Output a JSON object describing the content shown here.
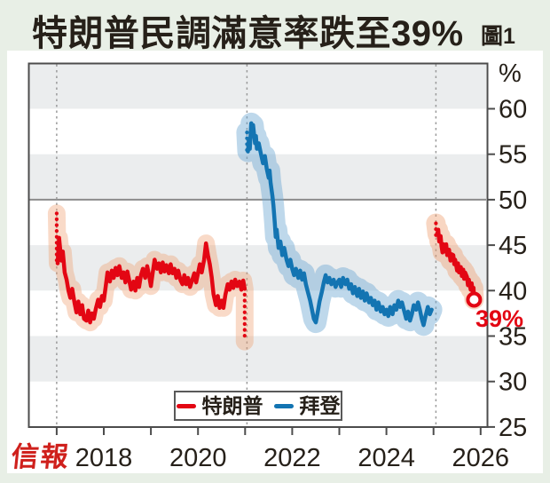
{
  "header": {
    "title": "特朗普民調滿意率跌至39%",
    "figure_label": "圖1"
  },
  "footer": {
    "logo": "信報"
  },
  "annotation": {
    "end_label": "39%"
  },
  "legend": {
    "items": [
      {
        "label": "特朗普",
        "color": "#e30613"
      },
      {
        "label": "拜登",
        "color": "#1374b2"
      }
    ]
  },
  "chart_data": {
    "type": "line",
    "title": "特朗普民調滿意率跌至39%",
    "unit_label": "%",
    "xlabel": "",
    "ylabel": "%",
    "ylim": [
      25,
      65
    ],
    "xlim": [
      2016.75,
      2026.15
    ],
    "y_ticks": [
      60,
      55,
      50,
      45,
      40,
      35,
      30,
      25
    ],
    "x_major_ticks": [
      2018,
      2020,
      2022,
      2024,
      2026
    ],
    "x_all_ticks": [
      2017,
      2018,
      2019,
      2020,
      2021,
      2022,
      2023,
      2024,
      2025,
      2026
    ],
    "gray_bands": [
      [
        60,
        65
      ],
      [
        50,
        55
      ],
      [
        40,
        45
      ],
      [
        30,
        35
      ]
    ],
    "reference_line": 50,
    "term_start_lines": [
      2017.0,
      2021.04,
      2025.05
    ],
    "grid": "banded",
    "legend_position": "bottom-center",
    "colors": {
      "band_gray": "#ebedee",
      "ref_line": "#8c8c8c",
      "axis": "#4c4c4c",
      "text": "#262019",
      "term_line": "#9a9a9a",
      "page_bg": "#e8efe6"
    },
    "series": [
      {
        "id": "trump-term1",
        "name": "特朗普",
        "color": "#e30613",
        "band_color": "#ef9e6e",
        "band_opacity": 0.38,
        "band_width": 20,
        "dotted_start": {
          "x": 2017.0,
          "from": 48.5,
          "to": 43.0
        },
        "dotted_end": {
          "x": 2020.99,
          "from": 40.2,
          "to": 34.4
        },
        "points": [
          [
            2017.02,
            43.0
          ],
          [
            2017.05,
            45.8
          ],
          [
            2017.07,
            44.8
          ],
          [
            2017.1,
            43.3
          ],
          [
            2017.13,
            44.3
          ],
          [
            2017.17,
            42.0
          ],
          [
            2017.21,
            41.2
          ],
          [
            2017.25,
            40.0
          ],
          [
            2017.29,
            39.2
          ],
          [
            2017.33,
            40.2
          ],
          [
            2017.38,
            38.6
          ],
          [
            2017.42,
            37.6
          ],
          [
            2017.46,
            38.8
          ],
          [
            2017.5,
            37.4
          ],
          [
            2017.54,
            38.4
          ],
          [
            2017.58,
            36.9
          ],
          [
            2017.63,
            36.7
          ],
          [
            2017.67,
            37.8
          ],
          [
            2017.71,
            36.5
          ],
          [
            2017.75,
            37.5
          ],
          [
            2017.79,
            36.9
          ],
          [
            2017.83,
            38.0
          ],
          [
            2017.88,
            39.0
          ],
          [
            2017.92,
            38.2
          ],
          [
            2017.96,
            39.4
          ],
          [
            2018.0,
            38.9
          ],
          [
            2018.04,
            40.4
          ],
          [
            2018.08,
            42.0
          ],
          [
            2018.13,
            41.0
          ],
          [
            2018.17,
            42.2
          ],
          [
            2018.21,
            41.4
          ],
          [
            2018.25,
            42.5
          ],
          [
            2018.29,
            41.7
          ],
          [
            2018.33,
            42.7
          ],
          [
            2018.38,
            41.4
          ],
          [
            2018.42,
            42.0
          ],
          [
            2018.46,
            40.9
          ],
          [
            2018.5,
            42.1
          ],
          [
            2018.54,
            41.1
          ],
          [
            2018.58,
            40.1
          ],
          [
            2018.63,
            41.0
          ],
          [
            2018.67,
            40.0
          ],
          [
            2018.71,
            41.4
          ],
          [
            2018.75,
            40.4
          ],
          [
            2018.79,
            41.7
          ],
          [
            2018.83,
            42.4
          ],
          [
            2018.88,
            41.4
          ],
          [
            2018.92,
            42.7
          ],
          [
            2018.96,
            41.7
          ],
          [
            2019.0,
            40.5
          ],
          [
            2019.04,
            42.0
          ],
          [
            2019.08,
            43.4
          ],
          [
            2019.13,
            42.4
          ],
          [
            2019.17,
            43.0
          ],
          [
            2019.21,
            42.0
          ],
          [
            2019.25,
            43.1
          ],
          [
            2019.29,
            42.1
          ],
          [
            2019.33,
            42.8
          ],
          [
            2019.38,
            41.9
          ],
          [
            2019.42,
            42.9
          ],
          [
            2019.46,
            41.9
          ],
          [
            2019.5,
            42.4
          ],
          [
            2019.54,
            41.4
          ],
          [
            2019.58,
            42.2
          ],
          [
            2019.63,
            41.1
          ],
          [
            2019.67,
            40.7
          ],
          [
            2019.71,
            41.7
          ],
          [
            2019.75,
            40.7
          ],
          [
            2019.79,
            41.4
          ],
          [
            2019.83,
            40.4
          ],
          [
            2019.88,
            41.2
          ],
          [
            2019.92,
            41.9
          ],
          [
            2019.96,
            40.9
          ],
          [
            2020.0,
            41.9
          ],
          [
            2020.04,
            42.9
          ],
          [
            2020.08,
            42.0
          ],
          [
            2020.13,
            43.4
          ],
          [
            2020.17,
            45.2
          ],
          [
            2020.21,
            43.9
          ],
          [
            2020.25,
            42.9
          ],
          [
            2020.29,
            41.5
          ],
          [
            2020.33,
            39.6
          ],
          [
            2020.38,
            38.4
          ],
          [
            2020.42,
            39.4
          ],
          [
            2020.46,
            38.1
          ],
          [
            2020.5,
            38.9
          ],
          [
            2020.54,
            38.1
          ],
          [
            2020.58,
            39.5
          ],
          [
            2020.63,
            40.7
          ],
          [
            2020.67,
            40.1
          ],
          [
            2020.71,
            41.0
          ],
          [
            2020.75,
            40.3
          ],
          [
            2020.79,
            41.2
          ],
          [
            2020.83,
            40.5
          ],
          [
            2020.88,
            41.0
          ],
          [
            2020.92,
            40.1
          ],
          [
            2020.96,
            41.1
          ],
          [
            2020.99,
            40.2
          ]
        ]
      },
      {
        "id": "biden-term",
        "name": "拜登",
        "color": "#1374b2",
        "band_color": "#6ea9d2",
        "band_opacity": 0.45,
        "band_width": 24,
        "dotted_start": {
          "x": 2021.04,
          "from": 57.4,
          "to": 55.0
        },
        "points": [
          [
            2021.06,
            55.3
          ],
          [
            2021.08,
            56.5
          ],
          [
            2021.1,
            55.6
          ],
          [
            2021.13,
            58.4
          ],
          [
            2021.15,
            57.4
          ],
          [
            2021.17,
            58.2
          ],
          [
            2021.21,
            56.2
          ],
          [
            2021.23,
            57.0
          ],
          [
            2021.25,
            55.6
          ],
          [
            2021.29,
            56.2
          ],
          [
            2021.33,
            55.2
          ],
          [
            2021.38,
            54.0
          ],
          [
            2021.42,
            54.8
          ],
          [
            2021.46,
            53.4
          ],
          [
            2021.5,
            52.4
          ],
          [
            2021.52,
            53.2
          ],
          [
            2021.54,
            51.9
          ],
          [
            2021.58,
            50.4
          ],
          [
            2021.6,
            49.4
          ],
          [
            2021.63,
            47.4
          ],
          [
            2021.65,
            45.9
          ],
          [
            2021.67,
            46.7
          ],
          [
            2021.71,
            44.7
          ],
          [
            2021.75,
            45.4
          ],
          [
            2021.79,
            43.9
          ],
          [
            2021.83,
            44.7
          ],
          [
            2021.88,
            43.4
          ],
          [
            2021.92,
            42.7
          ],
          [
            2021.96,
            43.4
          ],
          [
            2022.0,
            42.4
          ],
          [
            2022.04,
            41.7
          ],
          [
            2022.08,
            42.4
          ],
          [
            2022.13,
            41.4
          ],
          [
            2022.17,
            42.2
          ],
          [
            2022.21,
            41.2
          ],
          [
            2022.25,
            41.9
          ],
          [
            2022.29,
            40.7
          ],
          [
            2022.33,
            39.9
          ],
          [
            2022.38,
            38.9
          ],
          [
            2022.42,
            37.9
          ],
          [
            2022.46,
            36.9
          ],
          [
            2022.5,
            36.5
          ],
          [
            2022.54,
            37.6
          ],
          [
            2022.58,
            38.8
          ],
          [
            2022.63,
            39.9
          ],
          [
            2022.67,
            40.9
          ],
          [
            2022.71,
            41.7
          ],
          [
            2022.75,
            40.9
          ],
          [
            2022.79,
            41.4
          ],
          [
            2022.83,
            40.7
          ],
          [
            2022.88,
            41.2
          ],
          [
            2022.92,
            40.4
          ],
          [
            2022.96,
            40.9
          ],
          [
            2023.0,
            41.2
          ],
          [
            2023.04,
            40.4
          ],
          [
            2023.08,
            41.4
          ],
          [
            2023.13,
            40.7
          ],
          [
            2023.17,
            41.2
          ],
          [
            2023.21,
            40.2
          ],
          [
            2023.25,
            40.7
          ],
          [
            2023.29,
            39.7
          ],
          [
            2023.33,
            40.4
          ],
          [
            2023.38,
            39.4
          ],
          [
            2023.42,
            40.2
          ],
          [
            2023.46,
            39.2
          ],
          [
            2023.5,
            39.9
          ],
          [
            2023.54,
            38.9
          ],
          [
            2023.58,
            39.7
          ],
          [
            2023.63,
            38.7
          ],
          [
            2023.67,
            39.2
          ],
          [
            2023.71,
            38.4
          ],
          [
            2023.75,
            38.9
          ],
          [
            2023.79,
            37.9
          ],
          [
            2023.83,
            38.7
          ],
          [
            2023.88,
            37.7
          ],
          [
            2023.92,
            38.2
          ],
          [
            2023.96,
            37.4
          ],
          [
            2024.0,
            37.9
          ],
          [
            2024.04,
            37.2
          ],
          [
            2024.08,
            38.2
          ],
          [
            2024.13,
            37.4
          ],
          [
            2024.17,
            38.4
          ],
          [
            2024.21,
            37.9
          ],
          [
            2024.25,
            38.9
          ],
          [
            2024.29,
            38.2
          ],
          [
            2024.33,
            38.7
          ],
          [
            2024.38,
            37.7
          ],
          [
            2024.42,
            36.9
          ],
          [
            2024.46,
            37.7
          ],
          [
            2024.5,
            36.7
          ],
          [
            2024.54,
            37.4
          ],
          [
            2024.58,
            38.4
          ],
          [
            2024.63,
            37.9
          ],
          [
            2024.67,
            38.7
          ],
          [
            2024.71,
            37.9
          ],
          [
            2024.75,
            36.9
          ],
          [
            2024.79,
            36.2
          ],
          [
            2024.83,
            37.2
          ],
          [
            2024.88,
            38.2
          ],
          [
            2024.92,
            37.4
          ],
          [
            2024.96,
            37.9
          ]
        ]
      },
      {
        "id": "trump-term2",
        "name": "特朗普",
        "color": "#e30613",
        "band_color": "#ef9e6e",
        "band_opacity": 0.42,
        "band_width": 22,
        "dotted_start": {
          "x": 2025.05,
          "from": 47.4,
          "to": 46.0
        },
        "points": [
          [
            2025.08,
            46.2
          ],
          [
            2025.1,
            46.7
          ],
          [
            2025.12,
            45.4
          ],
          [
            2025.15,
            46.0
          ],
          [
            2025.17,
            44.9
          ],
          [
            2025.19,
            44.2
          ],
          [
            2025.21,
            45.1
          ],
          [
            2025.25,
            44.3
          ],
          [
            2025.27,
            45.1
          ],
          [
            2025.29,
            43.9
          ],
          [
            2025.33,
            44.5
          ],
          [
            2025.36,
            43.3
          ],
          [
            2025.38,
            44.0
          ],
          [
            2025.42,
            43.9
          ],
          [
            2025.44,
            42.9
          ],
          [
            2025.46,
            43.4
          ],
          [
            2025.5,
            42.2
          ],
          [
            2025.52,
            43.0
          ],
          [
            2025.54,
            42.0
          ],
          [
            2025.58,
            42.6
          ],
          [
            2025.6,
            41.6
          ],
          [
            2025.63,
            42.3
          ],
          [
            2025.65,
            41.3
          ],
          [
            2025.67,
            42.0
          ],
          [
            2025.71,
            41.5
          ],
          [
            2025.73,
            40.6
          ],
          [
            2025.75,
            41.2
          ],
          [
            2025.79,
            40.1
          ],
          [
            2025.81,
            40.8
          ],
          [
            2025.83,
            39.9
          ],
          [
            2025.85,
            40.3
          ],
          [
            2025.86,
            39.0
          ]
        ]
      }
    ],
    "endpoint": {
      "x": 2025.86,
      "y": 39,
      "label": "39%"
    }
  }
}
